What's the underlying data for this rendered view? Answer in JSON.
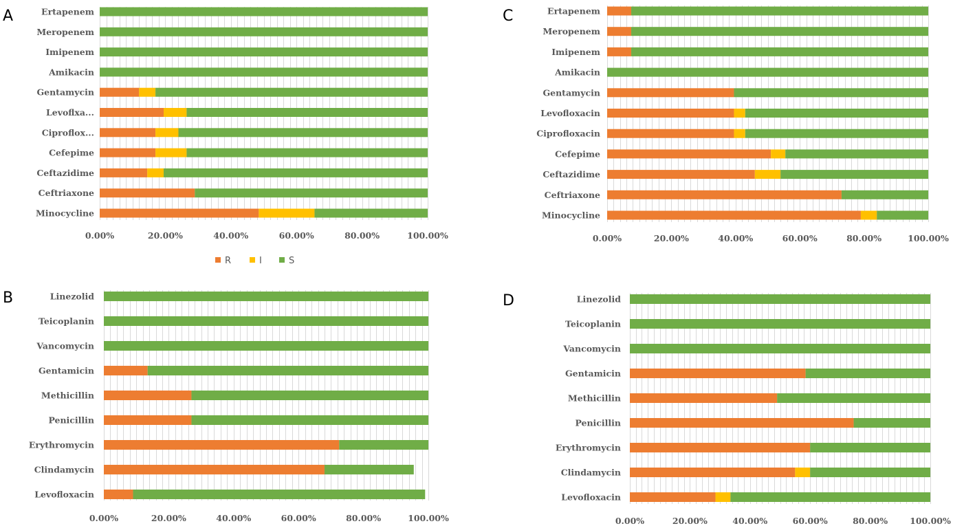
{
  "colors": {
    "R": "#ed7d31",
    "I": "#ffc000",
    "S": "#70ad47"
  },
  "legend": [
    {
      "key": "R",
      "label": "R"
    },
    {
      "key": "I",
      "label": "I"
    },
    {
      "key": "S",
      "label": "S"
    }
  ],
  "chart_data": [
    {
      "panel": "A",
      "type": "bar",
      "orientation": "horizontal",
      "stacked": true,
      "categories": [
        "Ertapenem",
        "Meropenem",
        "Imipenem",
        "Amikacin",
        "Gentamycin",
        "Levoflxa...",
        "Ciproflox...",
        "Cefepime",
        "Ceftazidime",
        "Ceftriaxone",
        "Minocycline"
      ],
      "series": [
        {
          "name": "R",
          "values": [
            0,
            0,
            0,
            0,
            12,
            19.5,
            17,
            17,
            14.5,
            29,
            48.5
          ]
        },
        {
          "name": "I",
          "values": [
            0,
            0,
            0,
            0,
            5,
            7,
            7,
            9.5,
            5,
            0,
            17
          ]
        },
        {
          "name": "S",
          "values": [
            100,
            100,
            100,
            100,
            83,
            73.5,
            76,
            73.5,
            80.5,
            71,
            34.5
          ]
        }
      ],
      "xlim": [
        0,
        100
      ],
      "ticks": [
        "0.00%",
        "20.00%",
        "40.00%",
        "60.00%",
        "80.00%",
        "100.00%"
      ],
      "grid": true
    },
    {
      "panel": "C",
      "type": "bar",
      "orientation": "horizontal",
      "stacked": true,
      "categories": [
        "Ertapenem",
        "Meropenem",
        "Imipenem",
        "Amikacin",
        "Gentamycin",
        "Levofloxacin",
        "Ciprofloxacin",
        "Cefepime",
        "Ceftazidime",
        "Ceftriaxone",
        "Minocycline"
      ],
      "series": [
        {
          "name": "R",
          "values": [
            7.5,
            7.5,
            7.5,
            0,
            39.5,
            39.5,
            39.5,
            51,
            46,
            73,
            79
          ]
        },
        {
          "name": "I",
          "values": [
            0,
            0,
            0,
            0,
            0,
            3.5,
            3.5,
            4.5,
            8,
            0,
            5
          ]
        },
        {
          "name": "S",
          "values": [
            92.5,
            92.5,
            92.5,
            100,
            60.5,
            57,
            57,
            44.5,
            46,
            27,
            16
          ]
        }
      ],
      "xlim": [
        0,
        100
      ],
      "ticks": [
        "0.00%",
        "20.00%",
        "40.00%",
        "60.00%",
        "80.00%",
        "100.00%"
      ],
      "grid": true
    },
    {
      "panel": "B",
      "type": "bar",
      "orientation": "horizontal",
      "stacked": true,
      "categories": [
        "Linezolid",
        "Teicoplanin",
        "Vancomycin",
        "Gentamicin",
        "Methicillin",
        "Penicillin",
        "Erythromycin",
        "Clindamycin",
        "Levofloxacin"
      ],
      "series": [
        {
          "name": "R",
          "values": [
            0,
            0,
            0,
            13.5,
            27,
            27,
            72.5,
            68,
            9
          ]
        },
        {
          "name": "I",
          "values": [
            0,
            0,
            0,
            0,
            0,
            0,
            0,
            0,
            0
          ]
        },
        {
          "name": "S",
          "values": [
            100,
            100,
            100,
            86.5,
            73,
            73,
            27.5,
            27.5,
            90
          ]
        }
      ],
      "xlim": [
        0,
        100
      ],
      "ticks": [
        "0.00%",
        "20.00%",
        "40.00%",
        "60.00%",
        "80.00%",
        "100.00%"
      ],
      "grid": true
    },
    {
      "panel": "D",
      "type": "bar",
      "orientation": "horizontal",
      "stacked": true,
      "categories": [
        "Linezolid",
        "Teicoplanin",
        "Vancomycin",
        "Gentamicin",
        "Methicillin",
        "Penicillin",
        "Erythromycin",
        "Clindamycin",
        "Levofloxacin"
      ],
      "series": [
        {
          "name": "R",
          "values": [
            0,
            0,
            0,
            58.5,
            49,
            74.5,
            60,
            55,
            28.5
          ]
        },
        {
          "name": "I",
          "values": [
            0,
            0,
            0,
            0,
            0,
            0,
            0,
            5,
            5
          ]
        },
        {
          "name": "S",
          "values": [
            100,
            100,
            100,
            41.5,
            51,
            25.5,
            40,
            40,
            66.5
          ]
        }
      ],
      "xlim": [
        0,
        100
      ],
      "ticks": [
        "0.00%",
        "20.00%",
        "40.00%",
        "60.00%",
        "80.00%",
        "100.00%"
      ],
      "grid": true
    }
  ]
}
